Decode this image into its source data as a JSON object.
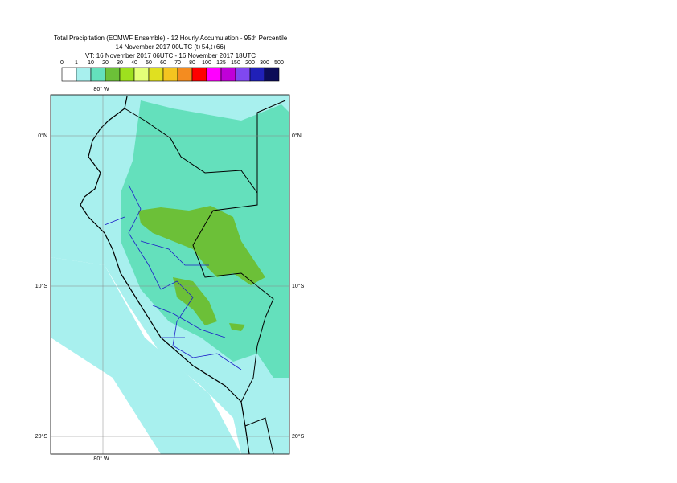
{
  "title": [
    "Total Precipitation (ECMWF Ensemble) - 12 Hourly Accumulation - 95th Percentile",
    "14 November 2017 00UTC (t+54,t+66)",
    "VT: 16 November 2017 06UTC - 16 November 2017 18UTC"
  ],
  "legend": {
    "labels": [
      "0",
      "1",
      "10",
      "20",
      "30",
      "40",
      "50",
      "60",
      "70",
      "80",
      "100",
      "125",
      "150",
      "200",
      "300",
      "500"
    ],
    "colors": [
      "#ffffff",
      "#a8f0ee",
      "#64e0bc",
      "#6cc038",
      "#9ee01e",
      "#e4ff78",
      "#e0e020",
      "#f4c420",
      "#f48c20",
      "#ff0000",
      "#ff00ff",
      "#c000d8",
      "#8048f0",
      "#2020b8",
      "#0c0c58"
    ]
  },
  "map": {
    "lon_labels": [
      "80° W",
      "80° W"
    ],
    "lat_labels_left": [
      "0°N",
      "10°S",
      "20°S"
    ],
    "lat_labels_right": [
      "0°N",
      "10°S",
      "20°S"
    ]
  }
}
